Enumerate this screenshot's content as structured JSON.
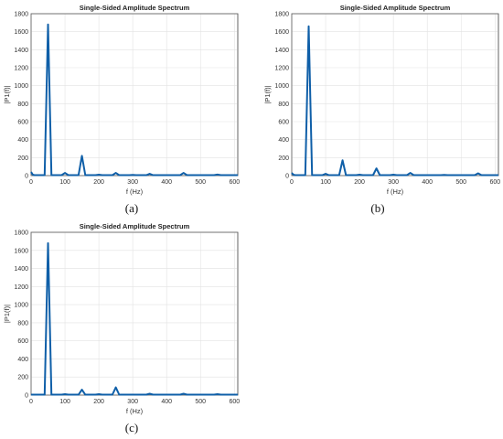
{
  "chart_data": [
    {
      "type": "line",
      "title": "Single-Sided Amplitude Spectrum",
      "xlabel": "f (Hz)",
      "ylabel": "|P1(f)|",
      "caption": "(a)",
      "xlim": [
        0,
        610
      ],
      "ylim": [
        0,
        1800
      ],
      "xticks": [
        0,
        100,
        200,
        300,
        400,
        500,
        600
      ],
      "yticks": [
        0,
        200,
        400,
        600,
        800,
        1000,
        1200,
        1400,
        1600,
        1800
      ],
      "grid": true,
      "series": [
        {
          "color": "#0f5fa8",
          "x": [
            0,
            5,
            10,
            40,
            50,
            60,
            90,
            100,
            110,
            140,
            150,
            160,
            190,
            200,
            210,
            240,
            250,
            260,
            290,
            300,
            310,
            340,
            350,
            360,
            440,
            450,
            460,
            540,
            550,
            560,
            610
          ],
          "y": [
            40,
            10,
            5,
            5,
            1680,
            5,
            5,
            30,
            5,
            5,
            220,
            5,
            5,
            10,
            5,
            5,
            30,
            5,
            5,
            8,
            5,
            5,
            20,
            5,
            5,
            30,
            5,
            5,
            12,
            5,
            5
          ]
        }
      ]
    },
    {
      "type": "line",
      "title": "Single-Sided Amplitude Spectrum",
      "xlabel": "f (Hz)",
      "ylabel": "|P1(f)|",
      "caption": "(b)",
      "xlim": [
        0,
        610
      ],
      "ylim": [
        0,
        1800
      ],
      "xticks": [
        0,
        100,
        200,
        300,
        400,
        500,
        600
      ],
      "yticks": [
        0,
        200,
        400,
        600,
        800,
        1000,
        1200,
        1400,
        1600,
        1800
      ],
      "grid": true,
      "series": [
        {
          "color": "#0f5fa8",
          "x": [
            0,
            5,
            10,
            40,
            50,
            60,
            90,
            100,
            110,
            140,
            150,
            160,
            190,
            200,
            210,
            240,
            250,
            260,
            290,
            300,
            310,
            340,
            350,
            360,
            440,
            450,
            460,
            540,
            550,
            560,
            610
          ],
          "y": [
            30,
            10,
            5,
            5,
            1660,
            5,
            5,
            20,
            5,
            5,
            170,
            5,
            5,
            10,
            5,
            5,
            80,
            5,
            5,
            10,
            5,
            5,
            30,
            5,
            5,
            8,
            5,
            5,
            25,
            5,
            5
          ]
        }
      ]
    },
    {
      "type": "line",
      "title": "Single-Sided Amplitude Spectrum",
      "xlabel": "f (Hz)",
      "ylabel": "|P1(f)|",
      "caption": "(c)",
      "xlim": [
        0,
        610
      ],
      "ylim": [
        0,
        1800
      ],
      "xticks": [
        0,
        100,
        200,
        300,
        400,
        500,
        600
      ],
      "yticks": [
        0,
        200,
        400,
        600,
        800,
        1000,
        1200,
        1400,
        1600,
        1800
      ],
      "grid": true,
      "series": [
        {
          "color": "#0f5fa8",
          "x": [
            0,
            40,
            50,
            60,
            90,
            100,
            110,
            140,
            150,
            160,
            190,
            200,
            210,
            240,
            250,
            260,
            340,
            350,
            360,
            440,
            450,
            460,
            540,
            550,
            560,
            610
          ],
          "y": [
            5,
            5,
            1680,
            5,
            5,
            10,
            5,
            5,
            60,
            5,
            5,
            10,
            5,
            5,
            85,
            5,
            5,
            15,
            5,
            5,
            15,
            5,
            5,
            10,
            5,
            5
          ]
        }
      ]
    }
  ]
}
